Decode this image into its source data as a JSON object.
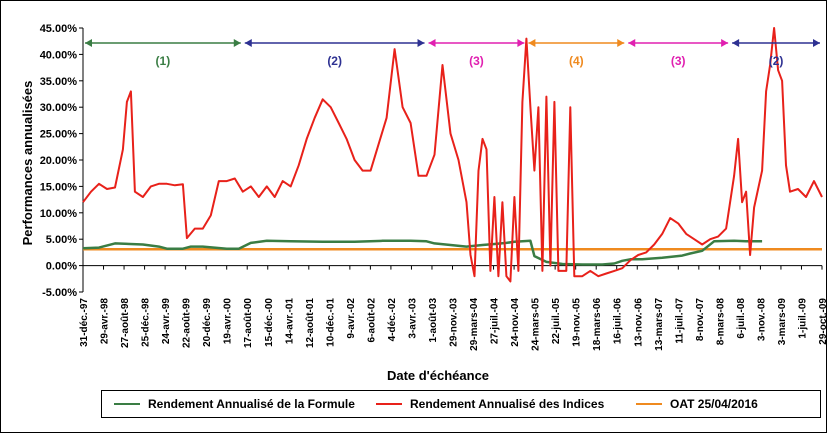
{
  "chart_data": {
    "type": "line",
    "title": "",
    "xlabel": "Date d'échéance",
    "ylabel": "Performances annualisées",
    "ylim": [
      -5,
      45
    ],
    "y_ticks": [
      -5,
      0,
      5,
      10,
      15,
      20,
      25,
      30,
      35,
      40,
      45
    ],
    "y_tick_labels": [
      "-5.00%",
      "0.00%",
      "5.00%",
      "10.00%",
      "15.00%",
      "20.00%",
      "25.00%",
      "30.00%",
      "35.00%",
      "40.00%",
      "45.00%"
    ],
    "x_range": [
      "1997-12-31",
      "2009-10-29"
    ],
    "x_tick_labels": [
      "31-déc.-97",
      "29-avr.-98",
      "27-août-98",
      "25-déc.-98",
      "24-avr.-99",
      "22-août-99",
      "20-déc.-99",
      "19-avr.-00",
      "17-août-00",
      "15-déc.-00",
      "14-avr.-01",
      "12-août-01",
      "10-déc.-01",
      "9-avr.-02",
      "6-août-02",
      "4-déc.-02",
      "3-avr.-03",
      "1-août-03",
      "29-nov.-03",
      "29-mars-04",
      "27-juil.-04",
      "24-nov.-04",
      "24-mars-05",
      "22-juil.-05",
      "19-nov.-05",
      "18-mars-06",
      "16-juil.-06",
      "13-nov.-06",
      "13-mars-07",
      "11-juil.-07",
      "8-nov.-07",
      "8-mars-08",
      "6-juil.-08",
      "3-nov.-08",
      "3-mars-09",
      "1-juil.-09",
      "29-oct.-09"
    ],
    "grid": false,
    "legend_position": "bottom",
    "series": [
      {
        "name": "Rendement Annualisé de la Formule",
        "color": "#3a7d44",
        "points": [
          [
            0,
            3.3
          ],
          [
            4,
            3.4
          ],
          [
            8,
            4.2
          ],
          [
            15,
            4.0
          ],
          [
            19,
            3.6
          ],
          [
            21,
            3.2
          ],
          [
            25,
            3.2
          ],
          [
            27,
            3.6
          ],
          [
            30,
            3.6
          ],
          [
            36,
            3.2
          ],
          [
            39,
            3.2
          ],
          [
            42,
            4.3
          ],
          [
            46,
            4.7
          ],
          [
            52,
            4.6
          ],
          [
            60,
            4.5
          ],
          [
            68,
            4.5
          ],
          [
            75,
            4.7
          ],
          [
            82,
            4.7
          ],
          [
            86,
            4.6
          ],
          [
            88,
            4.2
          ],
          [
            92,
            3.9
          ],
          [
            96,
            3.6
          ],
          [
            100,
            3.9
          ],
          [
            103,
            4.1
          ],
          [
            106,
            4.3
          ],
          [
            108,
            4.5
          ],
          [
            110,
            4.6
          ],
          [
            112,
            4.7
          ],
          [
            113,
            1.8
          ],
          [
            116,
            0.7
          ],
          [
            120,
            0.3
          ],
          [
            125,
            0.2
          ],
          [
            130,
            0.2
          ],
          [
            133,
            0.4
          ],
          [
            135,
            0.9
          ],
          [
            137,
            1.2
          ],
          [
            140,
            1.2
          ],
          [
            145,
            1.5
          ],
          [
            150,
            1.9
          ],
          [
            152,
            2.3
          ],
          [
            155,
            2.8
          ],
          [
            158,
            4.6
          ],
          [
            163,
            4.7
          ],
          [
            166,
            4.6
          ],
          [
            168,
            4.6
          ],
          [
            170,
            4.6
          ]
        ]
      },
      {
        "name": "Rendement Annualisé des Indices",
        "color": "#e8211a",
        "points": [
          [
            0,
            12
          ],
          [
            2,
            14
          ],
          [
            4,
            15.5
          ],
          [
            6,
            14.5
          ],
          [
            8,
            14.8
          ],
          [
            10,
            22
          ],
          [
            11,
            31
          ],
          [
            12,
            33
          ],
          [
            13,
            14
          ],
          [
            15,
            13
          ],
          [
            17,
            15
          ],
          [
            19,
            15.5
          ],
          [
            21,
            15.5
          ],
          [
            23,
            15.2
          ],
          [
            25,
            15.4
          ],
          [
            26,
            5.2
          ],
          [
            28,
            7
          ],
          [
            30,
            7
          ],
          [
            32,
            9.5
          ],
          [
            34,
            16
          ],
          [
            36,
            16
          ],
          [
            38,
            16.5
          ],
          [
            40,
            14
          ],
          [
            42,
            15
          ],
          [
            44,
            13
          ],
          [
            46,
            15
          ],
          [
            48,
            13
          ],
          [
            50,
            16
          ],
          [
            52,
            15
          ],
          [
            54,
            19
          ],
          [
            56,
            24
          ],
          [
            58,
            28
          ],
          [
            60,
            31.5
          ],
          [
            62,
            30
          ],
          [
            64,
            27
          ],
          [
            66,
            24
          ],
          [
            68,
            20
          ],
          [
            70,
            18
          ],
          [
            72,
            18
          ],
          [
            74,
            23
          ],
          [
            76,
            28
          ],
          [
            78,
            41
          ],
          [
            80,
            30
          ],
          [
            82,
            27
          ],
          [
            84,
            17
          ],
          [
            86,
            17
          ],
          [
            88,
            21
          ],
          [
            90,
            38
          ],
          [
            92,
            25
          ],
          [
            94,
            20
          ],
          [
            96,
            12
          ],
          [
            97,
            2
          ],
          [
            98,
            -2
          ],
          [
            99,
            18
          ],
          [
            100,
            24
          ],
          [
            101,
            22
          ],
          [
            102,
            -1
          ],
          [
            103,
            13
          ],
          [
            104,
            -2
          ],
          [
            105,
            12
          ],
          [
            106,
            -2
          ],
          [
            107,
            -3
          ],
          [
            108,
            13
          ],
          [
            109,
            -1
          ],
          [
            110,
            31
          ],
          [
            111,
            43
          ],
          [
            112,
            30
          ],
          [
            113,
            18
          ],
          [
            114,
            30
          ],
          [
            115,
            -1
          ],
          [
            116,
            32
          ],
          [
            117,
            0
          ],
          [
            118,
            31
          ],
          [
            119,
            -1
          ],
          [
            120,
            -1
          ],
          [
            121,
            -1
          ],
          [
            122,
            30
          ],
          [
            123,
            -2
          ],
          [
            125,
            -2
          ],
          [
            127,
            -1
          ],
          [
            129,
            -2
          ],
          [
            131,
            -1.5
          ],
          [
            133,
            -1
          ],
          [
            135,
            -0.5
          ],
          [
            137,
            1
          ],
          [
            139,
            2
          ],
          [
            141,
            2.5
          ],
          [
            143,
            4
          ],
          [
            145,
            6
          ],
          [
            147,
            9
          ],
          [
            149,
            8
          ],
          [
            151,
            6
          ],
          [
            153,
            5
          ],
          [
            155,
            4
          ],
          [
            157,
            5
          ],
          [
            159,
            5.5
          ],
          [
            161,
            7
          ],
          [
            163,
            17
          ],
          [
            164,
            24
          ],
          [
            165,
            12
          ],
          [
            166,
            14
          ],
          [
            167,
            2
          ],
          [
            168,
            11
          ],
          [
            170,
            18
          ],
          [
            171,
            33
          ],
          [
            172,
            38
          ],
          [
            173,
            45
          ],
          [
            174,
            37
          ],
          [
            175,
            35
          ],
          [
            176,
            19
          ],
          [
            177,
            14
          ],
          [
            179,
            14.5
          ],
          [
            181,
            13
          ],
          [
            183,
            16
          ],
          [
            185,
            13
          ]
        ]
      },
      {
        "name": "OAT 25/04/2016",
        "color": "#ef8a1f",
        "points": [
          [
            0,
            3.1
          ],
          [
            185,
            3.1
          ]
        ]
      }
    ],
    "annotations": [
      {
        "label": "(1)",
        "from": 0,
        "to": 40,
        "color": "#3a7d44"
      },
      {
        "label": "(2)",
        "from": 40,
        "to": 86,
        "color": "#2e3192"
      },
      {
        "label": "(3)",
        "from": 86,
        "to": 111,
        "color": "#e020b0"
      },
      {
        "label": "(4)",
        "from": 111,
        "to": 136,
        "color": "#ef8a1f"
      },
      {
        "label": "(3)",
        "from": 136,
        "to": 162,
        "color": "#e020b0"
      },
      {
        "label": "(2)",
        "from": 162,
        "to": 185,
        "color": "#2e3192"
      }
    ]
  }
}
